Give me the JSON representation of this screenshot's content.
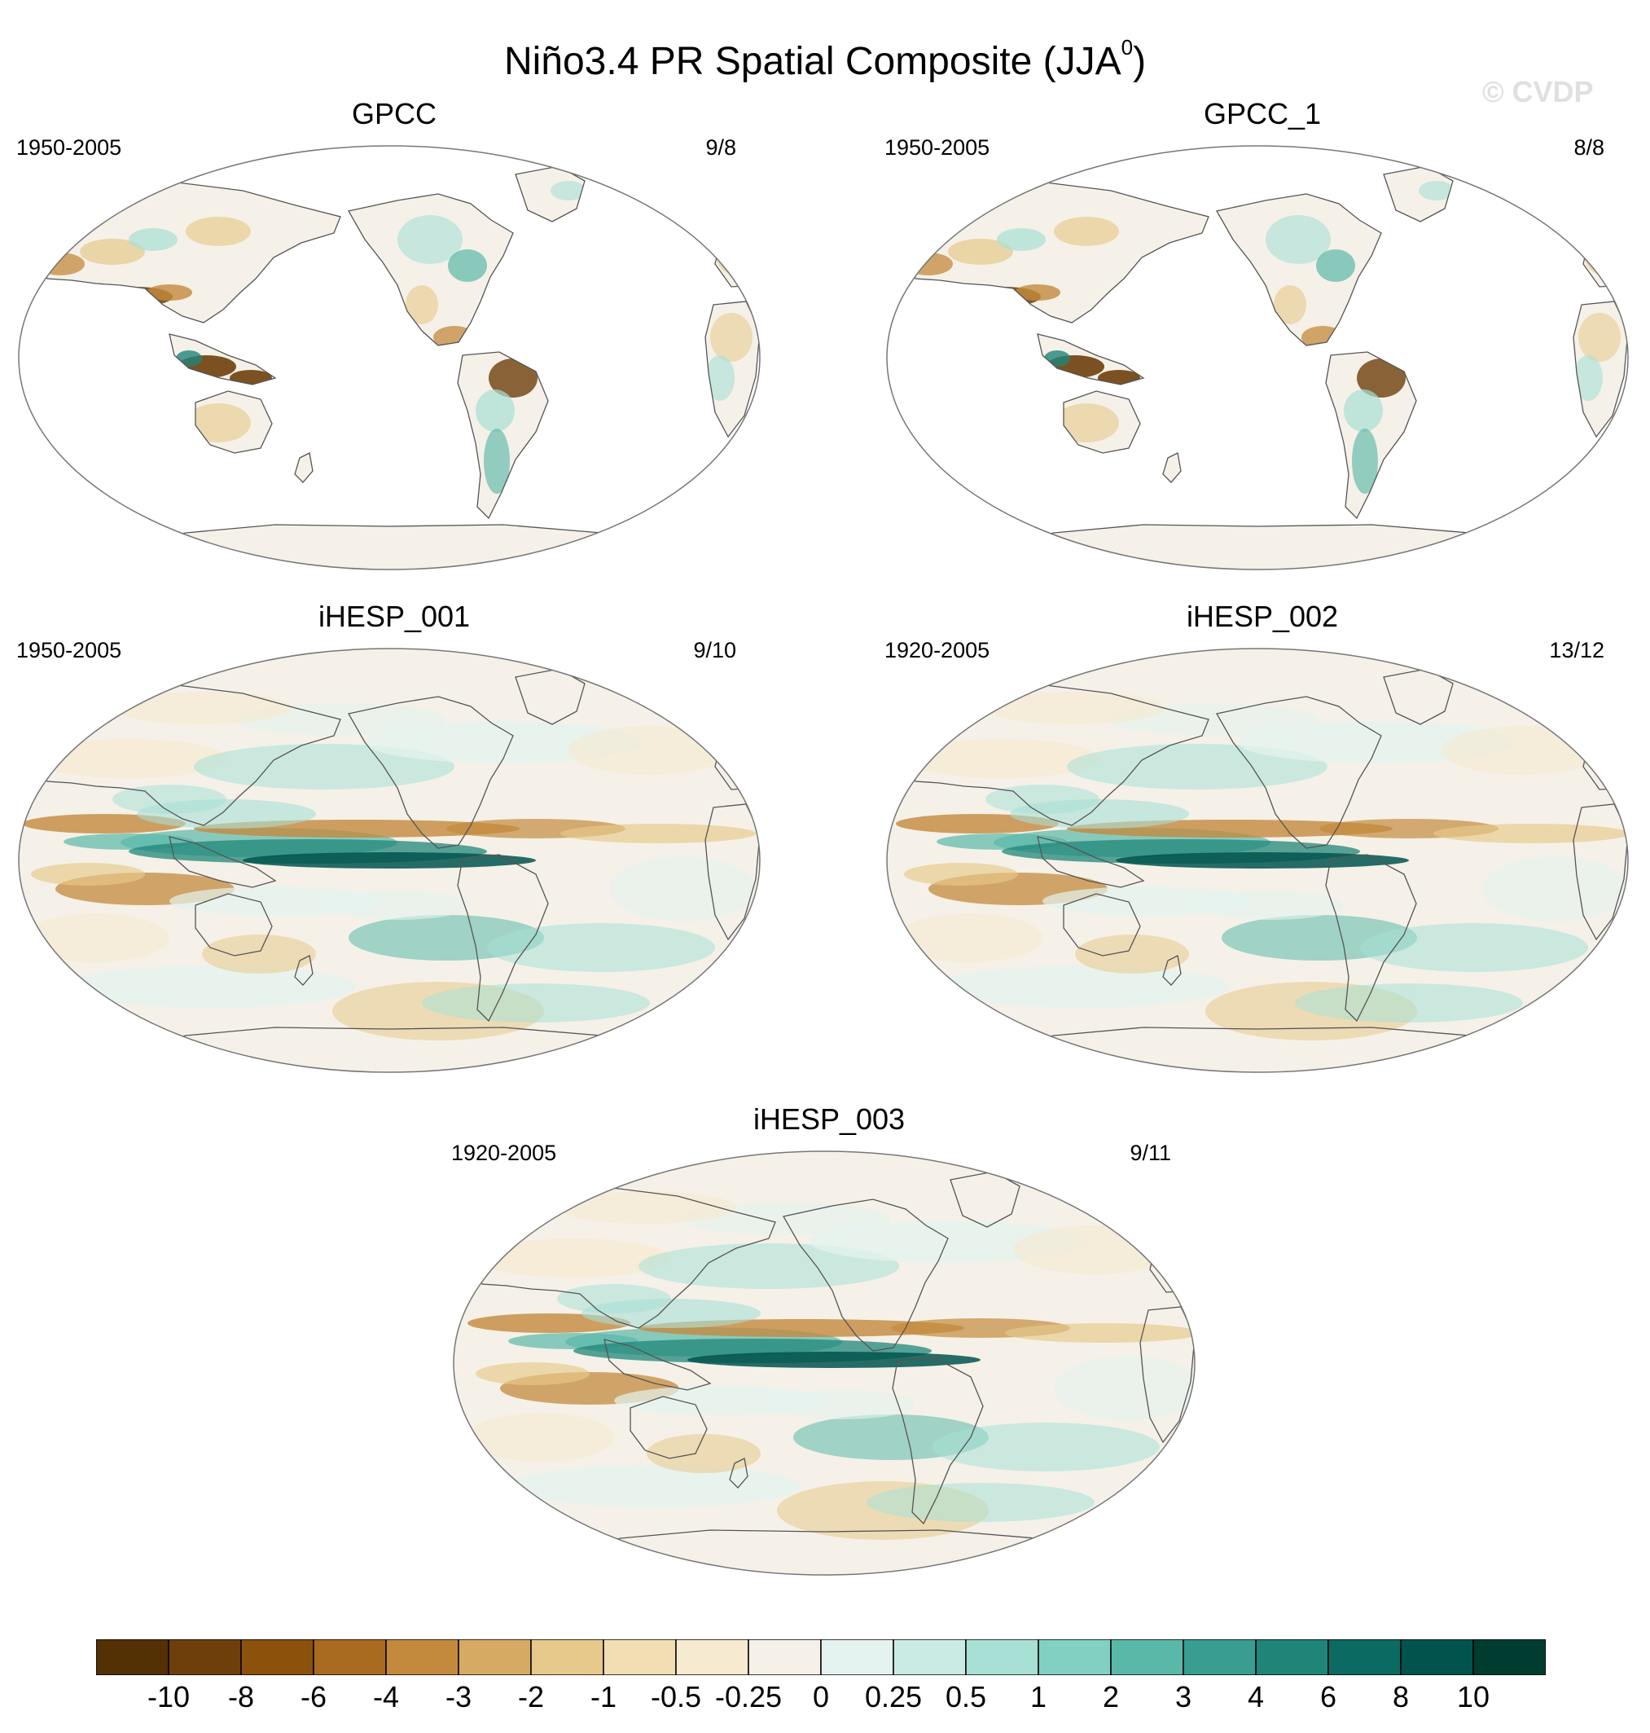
{
  "figure": {
    "title_main": "Niño3.4 PR Spatial Composite (JJA",
    "title_superscript": "0",
    "title_close": ")",
    "watermark": "© CVDP"
  },
  "panels": [
    {
      "name": "GPCC",
      "period": "1950-2005",
      "count": "9/8",
      "type": "obs"
    },
    {
      "name": "GPCC_1",
      "period": "1950-2005",
      "count": "8/8",
      "type": "obs"
    },
    {
      "name": "iHESP_001",
      "period": "1950-2005",
      "count": "9/10",
      "type": "model"
    },
    {
      "name": "iHESP_002",
      "period": "1920-2005",
      "count": "13/12",
      "type": "model"
    },
    {
      "name": "iHESP_003",
      "period": "1920-2005",
      "count": "9/11",
      "type": "model"
    }
  ],
  "colorbar": {
    "labels": [
      "-10",
      "-8",
      "-6",
      "-4",
      "-3",
      "-2",
      "-1",
      "-0.5",
      "-0.25",
      "0",
      "0.25",
      "0.5",
      "1",
      "2",
      "3",
      "4",
      "6",
      "8",
      "10"
    ],
    "colors": [
      "#543005",
      "#6f3f0b",
      "#8c510a",
      "#a86b1f",
      "#c38a3d",
      "#d6aa62",
      "#e6c98b",
      "#f1dfb3",
      "#f6ead1",
      "#f5f1e8",
      "#e4f3ef",
      "#c9ebe4",
      "#a8e0d5",
      "#82d0c2",
      "#5ab8a9",
      "#399d91",
      "#1f8579",
      "#0b6b62",
      "#01544d",
      "#003c30"
    ]
  }
}
